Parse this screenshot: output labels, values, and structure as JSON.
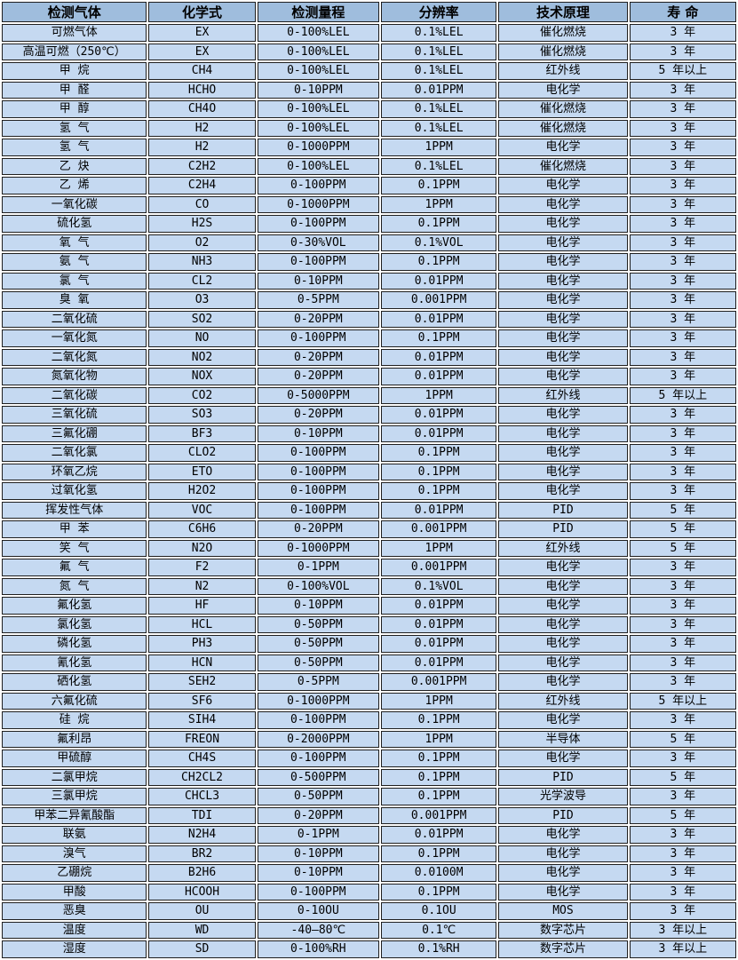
{
  "table": {
    "title": "gas-detector-specifications",
    "colors": {
      "header_bg": "#9fbddd",
      "row_bg": "#c5d9f1",
      "border": "#1f1f1f",
      "text": "#000000"
    },
    "columns": [
      "检测气体",
      "化学式",
      "检测量程",
      "分辨率",
      "技术原理",
      "寿 命"
    ],
    "column_keys": [
      "gas",
      "formula",
      "range",
      "resolution",
      "principle",
      "lifespan"
    ],
    "rows": [
      [
        "可燃气体",
        "EX",
        "0-100%LEL",
        "0.1%LEL",
        "催化燃烧",
        "3 年"
      ],
      [
        "高温可燃（250℃）",
        "EX",
        "0-100%LEL",
        "0.1%LEL",
        "催化燃烧",
        "3 年"
      ],
      [
        "甲 烷",
        "CH4",
        "0-100%LEL",
        "0.1%LEL",
        "红外线",
        "5 年以上"
      ],
      [
        "甲 醛",
        "HCHO",
        "0-10PPM",
        "0.01PPM",
        "电化学",
        "3 年"
      ],
      [
        "甲 醇",
        "CH4O",
        "0-100%LEL",
        "0.1%LEL",
        "催化燃烧",
        "3 年"
      ],
      [
        "氢 气",
        "H2",
        "0-100%LEL",
        "0.1%LEL",
        "催化燃烧",
        "3 年"
      ],
      [
        "氢 气",
        "H2",
        "0-1000PPM",
        "1PPM",
        "电化学",
        "3 年"
      ],
      [
        "乙 炔",
        "C2H2",
        "0-100%LEL",
        "0.1%LEL",
        "催化燃烧",
        "3 年"
      ],
      [
        "乙 烯",
        "C2H4",
        "0-100PPM",
        "0.1PPM",
        "电化学",
        "3 年"
      ],
      [
        "一氧化碳",
        "CO",
        "0-1000PPM",
        "1PPM",
        "电化学",
        "3 年"
      ],
      [
        "硫化氢",
        "H2S",
        "0-100PPM",
        "0.1PPM",
        "电化学",
        "3 年"
      ],
      [
        "氧 气",
        "O2",
        "0-30%VOL",
        "0.1%VOL",
        "电化学",
        "3 年"
      ],
      [
        "氨 气",
        "NH3",
        "0-100PPM",
        "0.1PPM",
        "电化学",
        "3 年"
      ],
      [
        "氯 气",
        "CL2",
        "0-10PPM",
        "0.01PPM",
        "电化学",
        "3 年"
      ],
      [
        "臭 氧",
        "O3",
        "0-5PPM",
        "0.001PPM",
        "电化学",
        "3 年"
      ],
      [
        "二氧化硫",
        "SO2",
        "0-20PPM",
        "0.01PPM",
        "电化学",
        "3 年"
      ],
      [
        "一氧化氮",
        "NO",
        "0-100PPM",
        "0.1PPM",
        "电化学",
        "3 年"
      ],
      [
        "二氧化氮",
        "NO2",
        "0-20PPM",
        "0.01PPM",
        "电化学",
        "3 年"
      ],
      [
        "氮氧化物",
        "NOX",
        "0-20PPM",
        "0.01PPM",
        "电化学",
        "3 年"
      ],
      [
        "二氧化碳",
        "CO2",
        "0-5000PPM",
        "1PPM",
        "红外线",
        "5 年以上"
      ],
      [
        "三氧化硫",
        "SO3",
        "0-20PPM",
        "0.01PPM",
        "电化学",
        "3 年"
      ],
      [
        "三氟化硼",
        "BF3",
        "0-10PPM",
        "0.01PPM",
        "电化学",
        "3 年"
      ],
      [
        "二氧化氯",
        "CLO2",
        "0-100PPM",
        "0.1PPM",
        "电化学",
        "3 年"
      ],
      [
        "环氧乙烷",
        "ETO",
        "0-100PPM",
        "0.1PPM",
        "电化学",
        "3 年"
      ],
      [
        "过氧化氢",
        "H2O2",
        "0-100PPM",
        "0.1PPM",
        "电化学",
        "3 年"
      ],
      [
        "挥发性气体",
        "VOC",
        "0-100PPM",
        "0.01PPM",
        "PID",
        "5 年"
      ],
      [
        "甲 苯",
        "C6H6",
        "0-20PPM",
        "0.001PPM",
        "PID",
        "5 年"
      ],
      [
        "笑 气",
        "N2O",
        "0-1000PPM",
        "1PPM",
        "红外线",
        "5 年"
      ],
      [
        "氟 气",
        "F2",
        "0-1PPM",
        "0.001PPM",
        "电化学",
        "3 年"
      ],
      [
        "氮 气",
        "N2",
        "0-100%VOL",
        "0.1%VOL",
        "电化学",
        "3 年"
      ],
      [
        "氟化氢",
        "HF",
        "0-10PPM",
        "0.01PPM",
        "电化学",
        "3 年"
      ],
      [
        "氯化氢",
        "HCL",
        "0-50PPM",
        "0.01PPM",
        "电化学",
        "3 年"
      ],
      [
        "磷化氢",
        "PH3",
        "0-50PPM",
        "0.01PPM",
        "电化学",
        "3 年"
      ],
      [
        "氰化氢",
        "HCN",
        "0-50PPM",
        "0.01PPM",
        "电化学",
        "3 年"
      ],
      [
        "硒化氢",
        "SEH2",
        "0-5PPM",
        "0.001PPM",
        "电化学",
        "3 年"
      ],
      [
        "六氟化硫",
        "SF6",
        "0-1000PPM",
        "1PPM",
        "红外线",
        "5 年以上"
      ],
      [
        "硅 烷",
        "SIH4",
        "0-100PPM",
        "0.1PPM",
        "电化学",
        "3 年"
      ],
      [
        "氟利昂",
        "FREON",
        "0-2000PPM",
        "1PPM",
        "半导体",
        "5 年"
      ],
      [
        "甲硫醇",
        "CH4S",
        "0-100PPM",
        "0.1PPM",
        "电化学",
        "3 年"
      ],
      [
        "二氯甲烷",
        "CH2CL2",
        "0-500PPM",
        "0.1PPM",
        "PID",
        "5 年"
      ],
      [
        "三氯甲烷",
        "CHCL3",
        "0-50PPM",
        "0.1PPM",
        "光学波导",
        "3 年"
      ],
      [
        "甲苯二异氰酸酯",
        "TDI",
        "0-20PPM",
        "0.001PPM",
        "PID",
        "5 年"
      ],
      [
        "联氨",
        "N2H4",
        "0-1PPM",
        "0.01PPM",
        "电化学",
        "3 年"
      ],
      [
        "溴气",
        "BR2",
        "0-10PPM",
        "0.1PPM",
        "电化学",
        "3 年"
      ],
      [
        "乙硼烷",
        "B2H6",
        "0-10PPM",
        "0.0100M",
        "电化学",
        "3 年"
      ],
      [
        "甲酸",
        "HCOOH",
        "0-100PPM",
        "0.1PPM",
        "电化学",
        "3 年"
      ],
      [
        "恶臭",
        "OU",
        "0-10OU",
        "0.1OU",
        "MOS",
        "3 年"
      ],
      [
        "温度",
        "WD",
        "-40—80℃",
        "0.1℃",
        "数字芯片",
        "3 年以上"
      ],
      [
        "湿度",
        "SD",
        "0-100%RH",
        "0.1%RH",
        "数字芯片",
        "3 年以上"
      ]
    ]
  }
}
